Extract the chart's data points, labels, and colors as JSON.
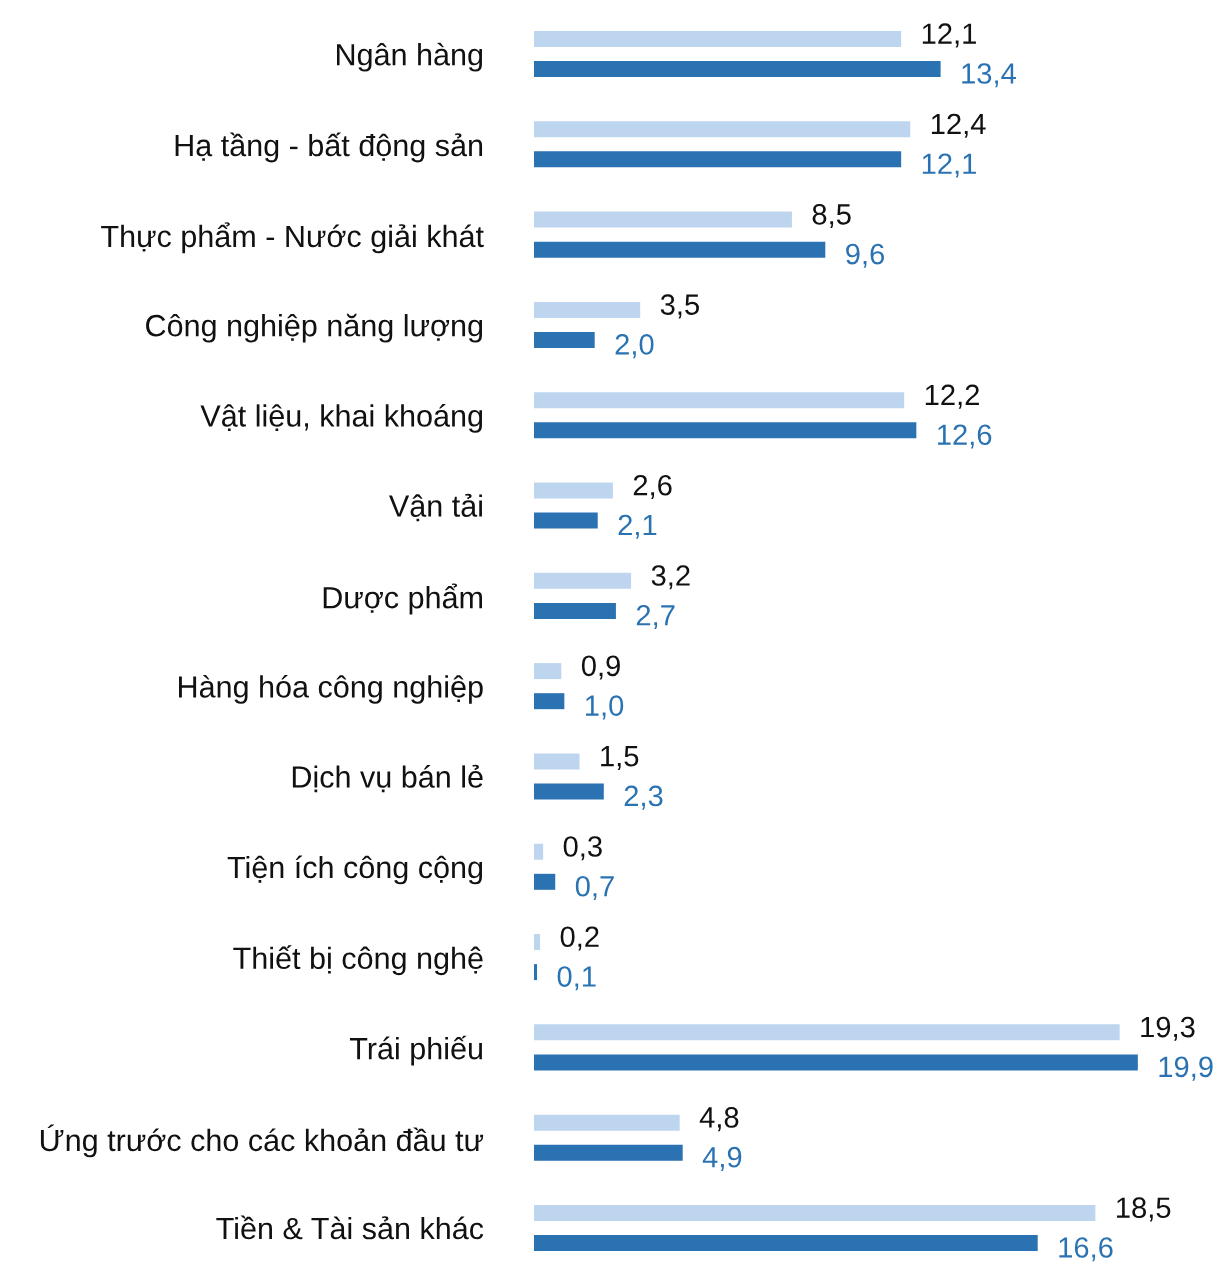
{
  "chart_data": {
    "type": "bar",
    "orientation": "horizontal",
    "categories": [
      "Ngân hàng",
      "Hạ tầng - bất động sản",
      "Thực phẩm - Nước giải khát",
      "Công nghiệp năng lượng",
      "Vật liệu, khai khoáng",
      "Vận tải",
      "Dược phẩm",
      "Hàng hóa công nghiệp",
      "Dịch vụ bán lẻ",
      "Tiện ích công cộng",
      "Thiết bị công nghệ",
      "Trái phiếu",
      "Ứng trước cho các khoản đầu tư",
      "Tiền & Tài sản khác"
    ],
    "series": [
      {
        "color": "#bdd5ee",
        "values": [
          12.1,
          12.4,
          8.5,
          3.5,
          12.2,
          2.6,
          3.2,
          0.9,
          1.5,
          0.3,
          0.2,
          19.3,
          4.8,
          18.5
        ],
        "value_labels": [
          "12,1",
          "12,4",
          "8,5",
          "3,5",
          "12,2",
          "2,6",
          "3,2",
          "0,9",
          "1,5",
          "0,3",
          "0,2",
          "19,3",
          "4,8",
          "18,5"
        ]
      },
      {
        "color": "#2a72b2",
        "values": [
          13.4,
          12.1,
          9.6,
          2.0,
          12.6,
          2.1,
          2.7,
          1.0,
          2.3,
          0.7,
          0.1,
          19.9,
          4.9,
          16.6
        ],
        "value_labels": [
          "13,4",
          "12,1",
          "9,6",
          "2,0",
          "12,6",
          "2,1",
          "2,7",
          "1,0",
          "2,3",
          "0,7",
          "0,1",
          "19,9",
          "4,9",
          "16,6"
        ]
      }
    ],
    "tick_labels": "y"
  }
}
